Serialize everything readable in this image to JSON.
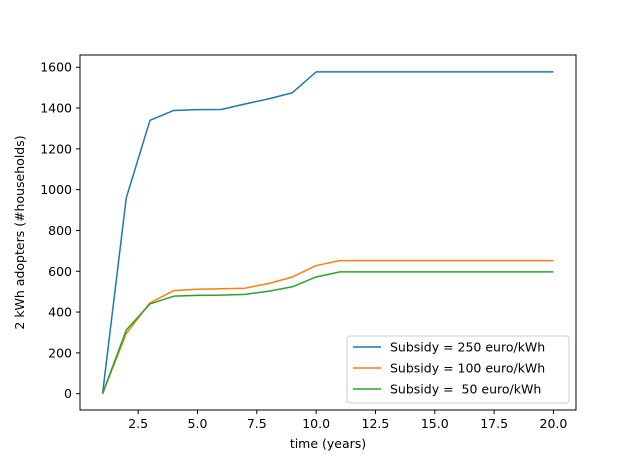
{
  "chart_data": {
    "type": "line",
    "xlabel": "time (years)",
    "ylabel": "2 kWh adopters (#households)",
    "xlim": [
      0.05,
      20.95
    ],
    "ylim": [
      -80,
      1660
    ],
    "xticks": [
      2.5,
      5.0,
      7.5,
      10.0,
      12.5,
      15.0,
      17.5,
      20.0
    ],
    "xtick_labels": [
      "2.5",
      "5.0",
      "7.5",
      "10.0",
      "12.5",
      "15.0",
      "17.5",
      "20.0"
    ],
    "yticks": [
      0,
      200,
      400,
      600,
      800,
      1000,
      1200,
      1400,
      1600
    ],
    "ytick_labels": [
      "0",
      "200",
      "400",
      "600",
      "800",
      "1000",
      "1200",
      "1400",
      "1600"
    ],
    "grid": false,
    "legend_position": "lower-right",
    "x": [
      1,
      2,
      3,
      4,
      5,
      6,
      7,
      8,
      9,
      10,
      11,
      12,
      13,
      14,
      15,
      16,
      17,
      18,
      19,
      20
    ],
    "series": [
      {
        "name": "Subsidy = 250 euro/kWh",
        "color": "#1f77b4",
        "values": [
          0,
          960,
          1340,
          1388,
          1392,
          1393,
          1420,
          1445,
          1475,
          1577,
          1577,
          1577,
          1577,
          1577,
          1577,
          1577,
          1577,
          1577,
          1577,
          1577
        ]
      },
      {
        "name": "Subsidy = 100 euro/kWh",
        "color": "#ff7f0e",
        "values": [
          0,
          295,
          445,
          505,
          512,
          514,
          517,
          540,
          572,
          628,
          652,
          652,
          652,
          652,
          652,
          652,
          652,
          652,
          652,
          652
        ]
      },
      {
        "name": "Subsidy =  50 euro/kWh",
        "color": "#2ca02c",
        "values": [
          0,
          312,
          440,
          478,
          482,
          483,
          487,
          502,
          524,
          572,
          597,
          597,
          597,
          597,
          597,
          597,
          597,
          597,
          597,
          597
        ]
      }
    ]
  }
}
